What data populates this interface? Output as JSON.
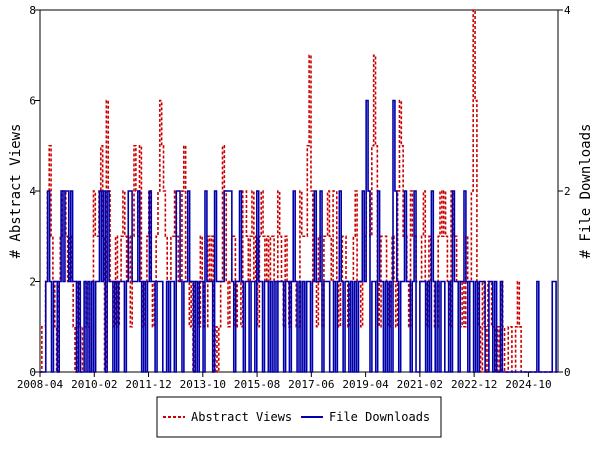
{
  "chart_data": {
    "type": "line",
    "xlabel": "",
    "x_ticks": [
      "2008-04",
      "2010-02",
      "2011-12",
      "2013-10",
      "2015-08",
      "2017-06",
      "2019-04",
      "2021-02",
      "2022-12",
      "2024-10"
    ],
    "x_range": [
      "2008-04",
      "2025-10"
    ],
    "y_left": {
      "label": "# Abstract Views",
      "range": [
        0,
        8
      ],
      "ticks": [
        0,
        2,
        4,
        6,
        8
      ]
    },
    "y_right": {
      "label": "# File Downloads",
      "range": [
        0,
        4
      ],
      "ticks": [
        0,
        2,
        4
      ]
    },
    "legend_position": "bottom-center",
    "grid": false,
    "series": [
      {
        "name": "Abstract Views",
        "axis": "left",
        "color": "#cc0000",
        "style": "dashed",
        "values": [
          0,
          1,
          1,
          2,
          4,
          5,
          3,
          2,
          1,
          0,
          2,
          3,
          4,
          4,
          3,
          2,
          3,
          2,
          1,
          0,
          2,
          1,
          0,
          1,
          1,
          2,
          1,
          0,
          2,
          4,
          3,
          3,
          4,
          5,
          3,
          0,
          6,
          4,
          2,
          2,
          1,
          3,
          1,
          2,
          3,
          4,
          3,
          2,
          3,
          1,
          3,
          5,
          4,
          3,
          5,
          2,
          1,
          2,
          3,
          4,
          2,
          1,
          2,
          3,
          4,
          6,
          5,
          4,
          3,
          2,
          2,
          3,
          3,
          4,
          3,
          2,
          2,
          4,
          5,
          2,
          2,
          1,
          2,
          0,
          2,
          2,
          1,
          3,
          2,
          1,
          1,
          3,
          2,
          3,
          0,
          1,
          0,
          1,
          2,
          5,
          4,
          2,
          1,
          2,
          3,
          3,
          1,
          2,
          2,
          1,
          4,
          4,
          3,
          2,
          3,
          4,
          2,
          3,
          1,
          3,
          4,
          3,
          2,
          3,
          2,
          3,
          3,
          2,
          2,
          4,
          3,
          2,
          1,
          3,
          2,
          1,
          2,
          2,
          2,
          1,
          1,
          4,
          3,
          3,
          3,
          5,
          7,
          4,
          2,
          2,
          1,
          3,
          2,
          1,
          3,
          3,
          4,
          3,
          2,
          4,
          4,
          2,
          1,
          2,
          3,
          3,
          2,
          1,
          2,
          2,
          3,
          4,
          2,
          2,
          1,
          2,
          3,
          4,
          4,
          3,
          5,
          7,
          5,
          2,
          1,
          3,
          3,
          3,
          2,
          1,
          2,
          3,
          2,
          1,
          4,
          6,
          5,
          3,
          3,
          2,
          1,
          4,
          3,
          3,
          2,
          2,
          2,
          3,
          4,
          2,
          1,
          3,
          2,
          2,
          1,
          1,
          3,
          4,
          3,
          4,
          3,
          2,
          1,
          4,
          3,
          3,
          2,
          2,
          1,
          2,
          1,
          3,
          2,
          2,
          4,
          8,
          6,
          2,
          1,
          0,
          2,
          1,
          0,
          2,
          2,
          1,
          1,
          0,
          1,
          0,
          2,
          1,
          0,
          0,
          1,
          1,
          0,
          0,
          1,
          2,
          1,
          0,
          0,
          0,
          0,
          0,
          0,
          0,
          0,
          0,
          0,
          0,
          0,
          0,
          0,
          0,
          0,
          0,
          0,
          0,
          0
        ]
      },
      {
        "name": "File Downloads",
        "axis": "right",
        "color": "#0000aa",
        "style": "solid",
        "values": [
          0,
          0,
          0,
          1,
          2,
          1,
          0,
          1,
          1,
          0,
          1,
          2,
          1,
          2,
          2,
          1,
          2,
          1,
          1,
          0,
          1,
          0,
          0,
          1,
          0,
          1,
          0,
          1,
          0,
          1,
          1,
          2,
          1,
          2,
          0,
          2,
          1,
          1,
          0,
          1,
          0,
          1,
          1,
          1,
          0,
          1,
          2,
          2,
          1,
          1,
          1,
          2,
          1,
          0,
          1,
          0,
          1,
          2,
          1,
          1,
          0,
          1,
          1,
          1,
          0,
          0,
          1,
          0,
          1,
          1,
          0,
          2,
          2,
          1,
          0,
          1,
          1,
          2,
          1,
          1,
          0,
          1,
          0,
          1,
          1,
          0,
          2,
          1,
          1,
          1,
          0,
          2,
          1,
          1,
          1,
          1,
          2,
          2,
          2,
          2,
          1,
          0,
          1,
          1,
          2,
          1,
          0,
          1,
          1,
          0,
          1,
          1,
          0,
          2,
          1,
          1,
          0,
          1,
          1,
          0,
          1,
          0,
          1,
          0,
          1,
          1,
          1,
          0,
          1,
          1,
          0,
          1,
          2,
          1,
          0,
          1,
          0,
          1,
          0,
          1,
          1,
          0,
          1,
          2,
          1,
          1,
          2,
          0,
          1,
          1,
          1,
          0,
          0,
          1,
          0,
          1,
          2,
          1,
          0,
          1,
          1,
          0,
          1,
          0,
          1,
          0,
          1,
          1,
          2,
          1,
          3,
          2,
          0,
          1,
          1,
          0,
          2,
          1,
          1,
          0,
          1,
          0,
          1,
          0,
          3,
          2,
          1,
          0,
          1,
          1,
          2,
          1,
          1,
          0,
          1,
          2,
          0,
          0,
          1,
          1,
          1,
          0,
          1,
          0,
          2,
          1,
          0,
          1,
          0,
          1,
          1,
          0,
          0,
          1,
          0,
          2,
          1,
          1,
          0,
          1,
          1,
          2,
          1,
          0,
          1,
          1,
          0,
          1,
          0,
          1,
          1,
          1,
          0,
          0,
          1,
          1,
          0,
          1,
          0,
          0,
          1,
          0,
          0,
          0,
          0,
          0,
          0,
          0,
          0,
          0,
          0,
          0,
          0,
          0,
          0,
          0,
          0,
          0,
          0,
          1,
          0,
          0,
          0,
          0,
          0,
          0,
          0,
          1,
          1,
          0
        ]
      }
    ]
  }
}
